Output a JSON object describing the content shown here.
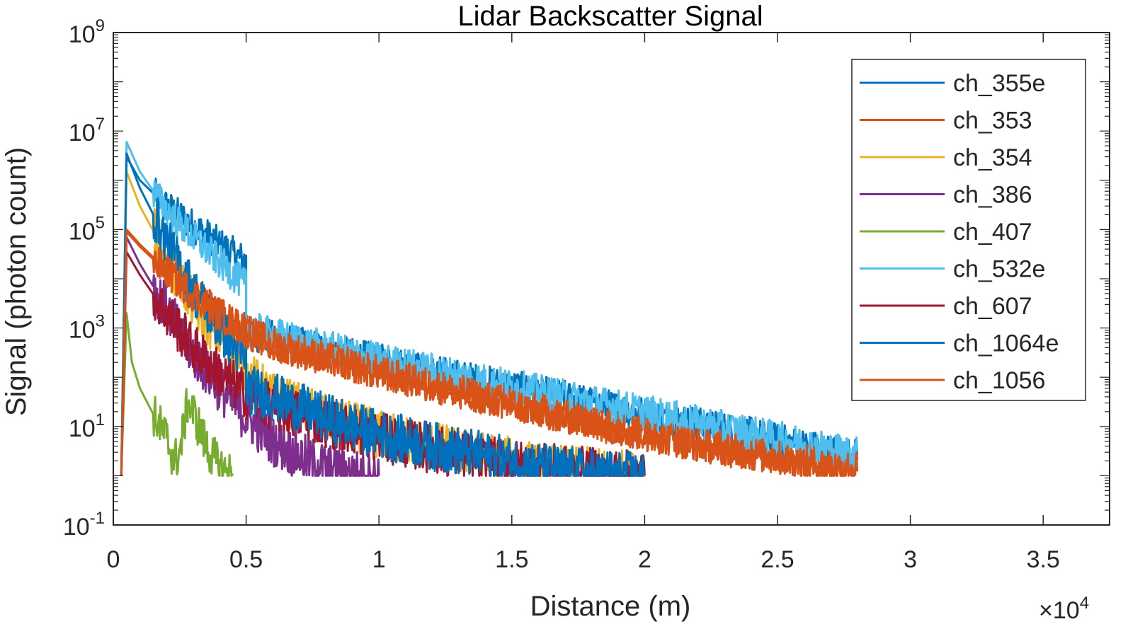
{
  "chart_data": {
    "type": "line",
    "title": "Lidar Backscatter Signal",
    "xlabel": "Distance (m)",
    "ylabel": "Signal (photon count)",
    "x_exponent_label": "×10",
    "x_exponent_power": "4",
    "x_scale_multiplier": 10000,
    "xlim": [
      0,
      37500
    ],
    "ylim": [
      0.1,
      1000000000
    ],
    "yscale": "log",
    "x_tick_labels": [
      "0",
      "0.5",
      "1",
      "1.5",
      "2",
      "2.5",
      "3",
      "3.5"
    ],
    "y_tick_labels": [
      {
        "base": "10",
        "exp": "-1"
      },
      {
        "base": "10",
        "exp": "1"
      },
      {
        "base": "10",
        "exp": "3"
      },
      {
        "base": "10",
        "exp": "5"
      },
      {
        "base": "10",
        "exp": "7"
      },
      {
        "base": "10",
        "exp": "9"
      }
    ],
    "grid": false,
    "legend_position": "top-right",
    "series": [
      {
        "name": "ch_355e",
        "color": "#0072BD",
        "points": [
          [
            300,
            1
          ],
          [
            500,
            3000000
          ],
          [
            1000,
            1000000
          ],
          [
            2000,
            300000
          ],
          [
            3000,
            120000
          ],
          [
            4000,
            50000
          ],
          [
            5000,
            22000
          ],
          [
            5000,
            800
          ],
          [
            6000,
            650
          ],
          [
            8000,
            350
          ],
          [
            10000,
            220
          ],
          [
            12000,
            130
          ],
          [
            14000,
            80
          ],
          [
            16000,
            50
          ],
          [
            18000,
            30
          ],
          [
            20000,
            18
          ],
          [
            22000,
            11
          ],
          [
            24000,
            7
          ],
          [
            26000,
            4
          ],
          [
            28000,
            2.5
          ]
        ],
        "noise_floor": 1,
        "noise_amp": 0.35
      },
      {
        "name": "ch_353",
        "color": "#D95319",
        "points": [
          [
            300,
            1
          ],
          [
            500,
            100000
          ],
          [
            1000,
            50000
          ],
          [
            2000,
            15000
          ],
          [
            3000,
            5000
          ],
          [
            4000,
            2000
          ],
          [
            5000,
            900
          ],
          [
            6000,
            500
          ],
          [
            8000,
            250
          ],
          [
            10000,
            130
          ],
          [
            12000,
            70
          ],
          [
            14000,
            40
          ],
          [
            16000,
            22
          ],
          [
            18000,
            13
          ],
          [
            20000,
            7
          ],
          [
            22000,
            4.5
          ],
          [
            24000,
            3
          ],
          [
            26000,
            2
          ],
          [
            28000,
            1.5
          ]
        ],
        "noise_floor": 1,
        "noise_amp": 0.35
      },
      {
        "name": "ch_354",
        "color": "#EDB120",
        "points": [
          [
            300,
            1
          ],
          [
            500,
            1500000
          ],
          [
            1000,
            300000
          ],
          [
            2000,
            30000
          ],
          [
            3000,
            3000
          ],
          [
            4000,
            700
          ],
          [
            5000,
            120
          ],
          [
            6000,
            40
          ],
          [
            8000,
            15
          ],
          [
            10000,
            7
          ],
          [
            12000,
            4
          ],
          [
            14000,
            2.5
          ],
          [
            16000,
            1.5
          ],
          [
            18000,
            1.2
          ],
          [
            20000,
            1
          ]
        ],
        "noise_floor": 1,
        "noise_amp": 0.5
      },
      {
        "name": "ch_386",
        "color": "#7E2F8E",
        "points": [
          [
            300,
            1
          ],
          [
            500,
            70000
          ],
          [
            1000,
            20000
          ],
          [
            2000,
            2500
          ],
          [
            3000,
            300
          ],
          [
            4000,
            60
          ],
          [
            5000,
            15
          ],
          [
            6000,
            5
          ],
          [
            7000,
            2.5
          ],
          [
            8000,
            1.5
          ],
          [
            9000,
            1.1
          ],
          [
            10000,
            1
          ]
        ],
        "noise_floor": 1,
        "noise_amp": 0.5
      },
      {
        "name": "ch_407",
        "color": "#77AC30",
        "points": [
          [
            300,
            1
          ],
          [
            500,
            2000
          ],
          [
            700,
            200
          ],
          [
            1000,
            60
          ],
          [
            1500,
            18
          ],
          [
            2000,
            6
          ],
          [
            2300,
            2
          ],
          [
            2500,
            3
          ],
          [
            2800,
            30
          ],
          [
            3000,
            20
          ],
          [
            3500,
            4
          ],
          [
            4000,
            1.5
          ],
          [
            4500,
            1
          ]
        ],
        "noise_floor": 1,
        "noise_amp": 0.45
      },
      {
        "name": "ch_532e",
        "color": "#4DBEEE",
        "points": [
          [
            300,
            1
          ],
          [
            500,
            6000000
          ],
          [
            1000,
            1500000
          ],
          [
            2000,
            250000
          ],
          [
            3000,
            70000
          ],
          [
            4000,
            22000
          ],
          [
            5000,
            7000
          ],
          [
            5000,
            1000
          ],
          [
            6000,
            750
          ],
          [
            8000,
            400
          ],
          [
            10000,
            230
          ],
          [
            12000,
            140
          ],
          [
            14000,
            85
          ],
          [
            16000,
            52
          ],
          [
            18000,
            32
          ],
          [
            20000,
            20
          ],
          [
            22000,
            12
          ],
          [
            24000,
            7.5
          ],
          [
            26000,
            4.5
          ],
          [
            28000,
            2.8
          ]
        ],
        "noise_floor": 1,
        "noise_amp": 0.35
      },
      {
        "name": "ch_607",
        "color": "#A2142F",
        "points": [
          [
            300,
            1
          ],
          [
            500,
            35000
          ],
          [
            1000,
            12000
          ],
          [
            2000,
            2000
          ],
          [
            3000,
            400
          ],
          [
            4000,
            120
          ],
          [
            5000,
            45
          ],
          [
            6000,
            25
          ],
          [
            8000,
            12
          ],
          [
            10000,
            6
          ],
          [
            12000,
            3.5
          ],
          [
            14000,
            2
          ],
          [
            16000,
            1.5
          ],
          [
            18000,
            1.2
          ],
          [
            20000,
            1
          ]
        ],
        "noise_floor": 1,
        "noise_amp": 0.5
      },
      {
        "name": "ch_1064e",
        "color": "#0072BD",
        "points": [
          [
            300,
            1
          ],
          [
            500,
            3500000
          ],
          [
            1000,
            700000
          ],
          [
            2000,
            60000
          ],
          [
            3000,
            6000
          ],
          [
            4000,
            1000
          ],
          [
            5000,
            200
          ],
          [
            5000,
            60
          ],
          [
            6000,
            40
          ],
          [
            8000,
            15
          ],
          [
            10000,
            7
          ],
          [
            12000,
            4
          ],
          [
            14000,
            2.5
          ],
          [
            16000,
            1.5
          ],
          [
            18000,
            1.1
          ],
          [
            20000,
            1
          ]
        ],
        "noise_floor": 1,
        "noise_amp": 0.5
      },
      {
        "name": "ch_1056",
        "color": "#D95319",
        "points": [
          [
            300,
            1
          ],
          [
            500,
            90000
          ],
          [
            1000,
            45000
          ],
          [
            2000,
            14000
          ],
          [
            3000,
            4800
          ],
          [
            4000,
            1900
          ],
          [
            5000,
            850
          ],
          [
            6000,
            480
          ],
          [
            8000,
            240
          ],
          [
            10000,
            125
          ],
          [
            12000,
            68
          ],
          [
            14000,
            38
          ],
          [
            16000,
            21
          ],
          [
            18000,
            12
          ],
          [
            20000,
            7
          ],
          [
            22000,
            4.3
          ],
          [
            24000,
            2.8
          ],
          [
            26000,
            1.9
          ],
          [
            28000,
            1.4
          ]
        ],
        "noise_floor": 1,
        "noise_amp": 0.35
      }
    ]
  }
}
